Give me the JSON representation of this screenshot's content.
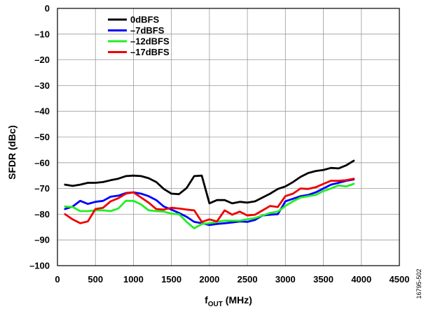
{
  "chart_data": {
    "type": "line",
    "title": "",
    "xlabel": "fOUT (MHz)",
    "xlabel_main": "f",
    "xlabel_sub": "OUT",
    "xlabel_unit": " (MHz)",
    "ylabel": "SFDR (dBc)",
    "xlim": [
      0,
      4500
    ],
    "ylim": [
      -100,
      0
    ],
    "xticks": [
      0,
      500,
      1000,
      1500,
      2000,
      2500,
      3000,
      3500,
      4000,
      4500
    ],
    "yticks": [
      0,
      -10,
      -20,
      -30,
      -40,
      -50,
      -60,
      -70,
      -80,
      -90,
      -100
    ],
    "xtick_labels": [
      "0",
      "500",
      "1000",
      "1500",
      "2000",
      "2500",
      "3000",
      "3500",
      "4000",
      "4500"
    ],
    "ytick_labels": [
      "0",
      "–10",
      "–20",
      "–30",
      "–40",
      "–50",
      "–60",
      "–70",
      "–80",
      "–90",
      "–100"
    ],
    "grid": true,
    "legend_position": "top-left",
    "series": [
      {
        "name": "0dBFS",
        "color": "#000000",
        "x": [
          100,
          200,
          300,
          400,
          500,
          600,
          700,
          800,
          900,
          1000,
          1100,
          1200,
          1300,
          1400,
          1500,
          1600,
          1700,
          1800,
          1900,
          2000,
          2100,
          2200,
          2300,
          2400,
          2500,
          2600,
          2700,
          2800,
          2900,
          3000,
          3100,
          3200,
          3300,
          3400,
          3500,
          3600,
          3700,
          3800,
          3900
        ],
        "y": [
          -68.5,
          -69,
          -68.5,
          -67.8,
          -67.8,
          -67.5,
          -66.8,
          -66.2,
          -65.2,
          -65,
          -65.2,
          -66,
          -67.5,
          -70.2,
          -72,
          -72.2,
          -69.8,
          -65.2,
          -65,
          -75.8,
          -74.5,
          -74.5,
          -75.8,
          -75.2,
          -75.5,
          -75,
          -73.5,
          -72,
          -70.2,
          -69.2,
          -67.5,
          -65.5,
          -64,
          -63.2,
          -62.8,
          -62,
          -62.2,
          -61,
          -59.2
        ]
      },
      {
        "name": "–7dBFS",
        "color": "#0000ff",
        "x": [
          100,
          200,
          300,
          400,
          500,
          600,
          700,
          800,
          900,
          1000,
          1100,
          1200,
          1300,
          1400,
          1500,
          1600,
          1700,
          1800,
          1900,
          2000,
          2100,
          2200,
          2300,
          2400,
          2500,
          2600,
          2700,
          2800,
          2900,
          3000,
          3100,
          3200,
          3300,
          3400,
          3500,
          3600,
          3700,
          3800,
          3900
        ],
        "y": [
          -78,
          -77,
          -74.8,
          -76,
          -75.2,
          -74.8,
          -73.2,
          -72.8,
          -71.8,
          -71.5,
          -72,
          -73,
          -74.5,
          -77,
          -78.2,
          -79.5,
          -81,
          -83,
          -83.5,
          -84.2,
          -83.8,
          -83.5,
          -83.2,
          -82.8,
          -83,
          -82.2,
          -80.5,
          -80.2,
          -80,
          -75,
          -74,
          -73,
          -72.5,
          -71.5,
          -70,
          -68.5,
          -67.8,
          -67,
          -66.5
        ]
      },
      {
        "name": "–12dBFS",
        "color": "#22ee22",
        "x": [
          100,
          200,
          300,
          400,
          500,
          600,
          700,
          800,
          900,
          1000,
          1100,
          1200,
          1300,
          1400,
          1500,
          1600,
          1700,
          1800,
          1900,
          2000,
          2100,
          2200,
          2300,
          2400,
          2500,
          2600,
          2700,
          2800,
          2900,
          3000,
          3100,
          3200,
          3300,
          3400,
          3500,
          3600,
          3700,
          3800,
          3900
        ],
        "y": [
          -77,
          -77.2,
          -78.8,
          -78.8,
          -78.5,
          -78.5,
          -78.8,
          -77.8,
          -74.8,
          -74.8,
          -76.2,
          -78.5,
          -78.8,
          -79,
          -79.8,
          -80,
          -83,
          -85.5,
          -83.8,
          -83.5,
          -83,
          -82.5,
          -82.5,
          -82.5,
          -82,
          -81.5,
          -80.5,
          -79.5,
          -79,
          -76.8,
          -75,
          -73.5,
          -73,
          -72.5,
          -71,
          -70,
          -68.8,
          -69.2,
          -68.2
        ]
      },
      {
        "name": "–17dBFS",
        "color": "#ee0000",
        "x": [
          100,
          200,
          300,
          400,
          500,
          600,
          700,
          800,
          900,
          1000,
          1100,
          1200,
          1300,
          1400,
          1500,
          1600,
          1700,
          1800,
          1900,
          2000,
          2100,
          2200,
          2300,
          2400,
          2500,
          2600,
          2700,
          2800,
          2900,
          3000,
          3100,
          3200,
          3300,
          3400,
          3500,
          3600,
          3700,
          3800,
          3900
        ],
        "y": [
          -80,
          -82,
          -83.5,
          -82.8,
          -78,
          -77.5,
          -75,
          -73.8,
          -72,
          -71.5,
          -73.5,
          -75.5,
          -78,
          -78.2,
          -77.5,
          -77.8,
          -78.2,
          -78.5,
          -83,
          -82,
          -82.8,
          -78.5,
          -80.2,
          -79,
          -80.5,
          -80.2,
          -78.5,
          -76.8,
          -77.2,
          -73,
          -72,
          -70,
          -70.2,
          -69.5,
          -68.2,
          -67,
          -67,
          -66.8,
          -66.2
        ]
      }
    ]
  },
  "figure_id": "16795-502"
}
